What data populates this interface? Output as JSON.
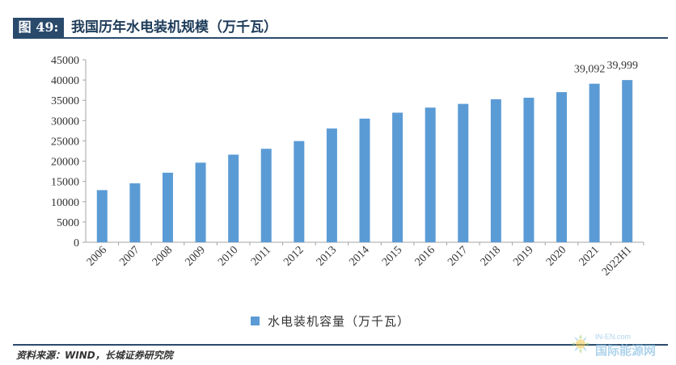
{
  "figure": {
    "label": "图 49:",
    "title": "我国历年水电装机规模（万千瓦）"
  },
  "legend": {
    "label": "水电装机容量（万千瓦）"
  },
  "source": "资料来源：WIND，长城证券研究院",
  "watermark": {
    "top": "IN-EN.com",
    "name": "国际能源网"
  },
  "colors": {
    "bar": "#5b9bd5",
    "title_bar": "#2a4a6c"
  },
  "chart_data": {
    "type": "bar",
    "title": "我国历年水电装机规模（万千瓦）",
    "categories": [
      "2006",
      "2007",
      "2008",
      "2009",
      "2010",
      "2011",
      "2012",
      "2013",
      "2014",
      "2015",
      "2016",
      "2017",
      "2018",
      "2019",
      "2020",
      "2021",
      "2022H1"
    ],
    "series": [
      {
        "name": "水电装机容量（万千瓦）",
        "values": [
          12857,
          14526,
          17152,
          19629,
          21606,
          23051,
          24947,
          28044,
          30486,
          31954,
          33207,
          34119,
          35259,
          35640,
          37016,
          39092,
          39999
        ]
      }
    ],
    "data_labels": {
      "15": "39,092",
      "16": "39,999"
    },
    "ylim": [
      0,
      45000
    ],
    "yticks": [
      0,
      5000,
      10000,
      15000,
      20000,
      25000,
      30000,
      35000,
      40000,
      45000
    ],
    "ytick_labels": [
      "0",
      "5000",
      "10000",
      "15000",
      "20000",
      "25000",
      "30000",
      "35000",
      "40000",
      "45000"
    ],
    "grid": false,
    "legend_position": "bottom"
  }
}
